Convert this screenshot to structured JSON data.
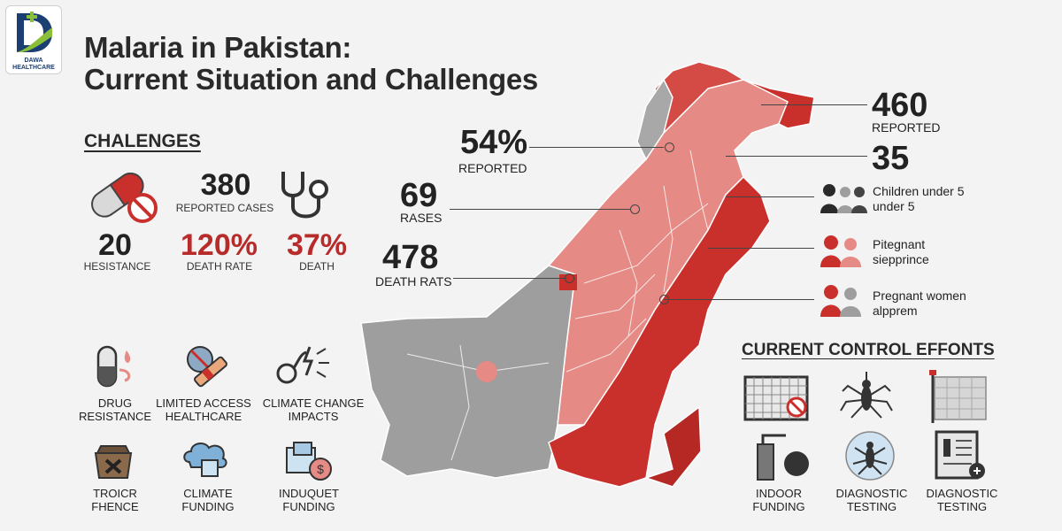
{
  "logo": {
    "line1": "DAWA",
    "line2": "HEALTHCARE"
  },
  "title": {
    "line1": "Malaria in Pakistan:",
    "line2": "Current Situation and Challenges"
  },
  "challenges": {
    "heading": "CHALENGES",
    "stat1": {
      "value": "380",
      "label": "REPORTED CASES"
    },
    "stat2": {
      "value": "20",
      "label": "HESISTANCE"
    },
    "stat3": {
      "value": "120%",
      "label": "DEATH RATE"
    },
    "stat4": {
      "value": "37%",
      "label": "DEATH"
    }
  },
  "factors": [
    {
      "line1": "DRUG",
      "line2": "RESISTANCE",
      "icon": "pill-drop-icon"
    },
    {
      "line1": "LIMITED ACCESS",
      "line2": "HEALTHCARE",
      "icon": "blocked-syringe-icon"
    },
    {
      "line1": "CLIMATE CHANGE",
      "line2": "IMPACTS",
      "icon": "stethoscope-lightning-icon"
    },
    {
      "line1": "TROICR",
      "line2": "FHENCE",
      "icon": "coin-purse-x-icon"
    },
    {
      "line1": "CLIMATE",
      "line2": "FUNDING",
      "icon": "cloud-ice-icon"
    },
    {
      "line1": "INDUQUET",
      "line2": "FUNDING",
      "icon": "ice-coin-icon"
    }
  ],
  "map_callouts": {
    "c1": {
      "value": "54%",
      "label": "REPORTED"
    },
    "c2": {
      "value": "69",
      "label": "RASES"
    },
    "c3": {
      "value": "478",
      "label": "DEATH RATS"
    },
    "c4": {
      "value": "460",
      "label": "REPORTED"
    },
    "c5": {
      "value": "35"
    }
  },
  "groups": [
    {
      "line1": "Children under 5",
      "line2": "under 5",
      "icon": "people-group-icon"
    },
    {
      "line1": "Pitegnant",
      "line2": "siepprince",
      "icon": "pregnant-pair-icon"
    },
    {
      "line1": "Pregnant women",
      "line2": "alpprem",
      "icon": "pregnant-women-icon"
    }
  ],
  "control": {
    "heading": "CURRENT CONTROL EFFONTS",
    "items": [
      {
        "line1": "",
        "line2": "",
        "icon": "bed-net-icon"
      },
      {
        "line1": "",
        "line2": "",
        "icon": "mosquito-icon"
      },
      {
        "line1": "",
        "line2": "",
        "icon": "net-flag-icon"
      },
      {
        "line1": "INDOOR",
        "line2": "FUNDING",
        "icon": "sprayer-icon"
      },
      {
        "line1": "DIAGNOSTIC",
        "line2": "TESTING",
        "icon": "mosquito-circle-icon"
      },
      {
        "line1": "DIAGNOSTIC",
        "line2": "TESTING",
        "icon": "test-report-icon"
      }
    ]
  },
  "colors": {
    "accent_red": "#b82b2b",
    "map_red": "#c9302c",
    "map_pink": "#e58a85",
    "map_grey": "#9e9e9e",
    "dark": "#2a2a2a"
  }
}
